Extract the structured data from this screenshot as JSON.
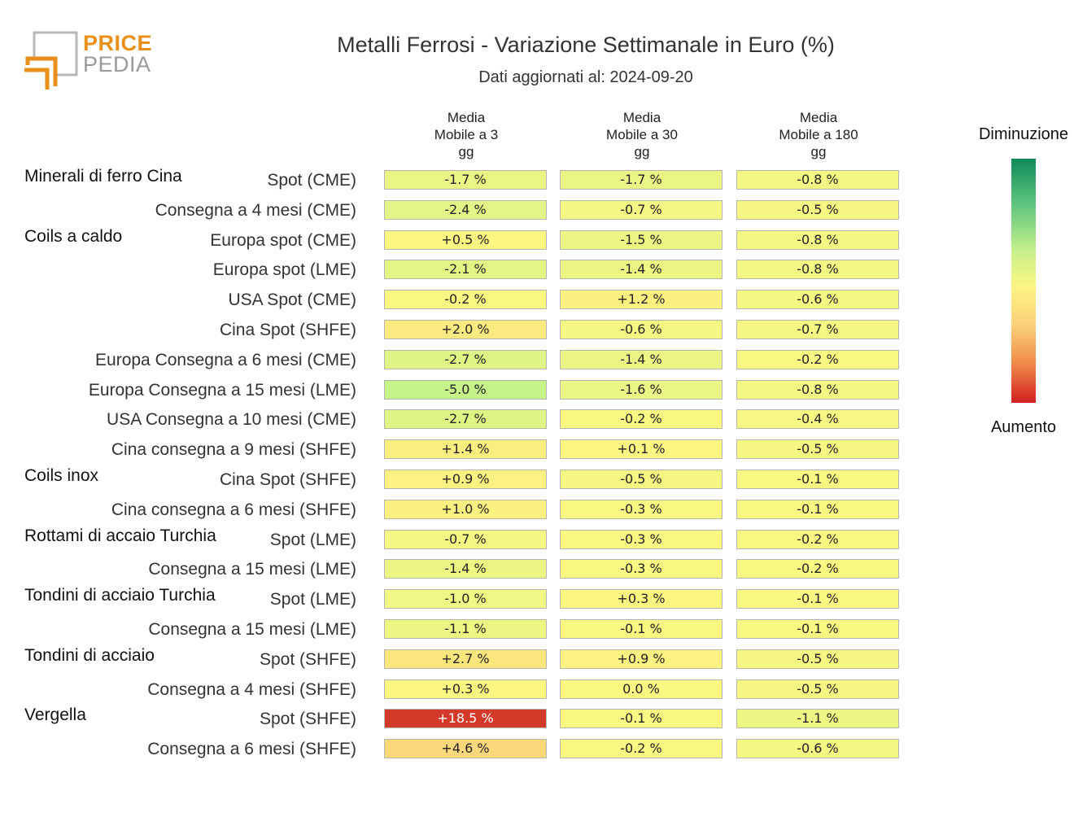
{
  "header": {
    "logo_line1": "PRICE",
    "logo_line2": "PEDIA",
    "title": "Metalli Ferrosi - Variazione Settimanale in Euro (%)",
    "subtitle": "Dati aggiornati al: 2024-09-20"
  },
  "legend": {
    "top_label": "Diminuzione",
    "bottom_label": "Aumento",
    "colors": [
      "#0f8a5a",
      "#5cc47e",
      "#c6f08a",
      "#fbf582",
      "#fbd27a",
      "#f08a4a",
      "#d11f1f"
    ]
  },
  "chart_data": {
    "type": "heatmap",
    "columns": [
      [
        "Media",
        "Mobile a 3",
        "gg"
      ],
      [
        "Media",
        "Mobile a 30",
        "gg"
      ],
      [
        "Media",
        "Mobile a 180",
        "gg"
      ]
    ],
    "rows": [
      {
        "group": "Minerali di ferro Cina",
        "label": "Spot (CME)",
        "values": [
          -1.7,
          -1.7,
          -0.8
        ],
        "text": [
          "-1.7 %",
          "-1.7 %",
          "-0.8 %"
        ]
      },
      {
        "group": "",
        "label": "Consegna a 4 mesi (CME)",
        "values": [
          -2.4,
          -0.7,
          -0.5
        ],
        "text": [
          "-2.4 %",
          "-0.7 %",
          "-0.5 %"
        ]
      },
      {
        "group": "Coils a caldo",
        "label": "Europa spot (CME)",
        "values": [
          0.5,
          -1.5,
          -0.8
        ],
        "text": [
          "+0.5 %",
          "-1.5 %",
          "-0.8 %"
        ]
      },
      {
        "group": "",
        "label": "Europa spot (LME)",
        "values": [
          -2.1,
          -1.4,
          -0.8
        ],
        "text": [
          "-2.1 %",
          "-1.4 %",
          "-0.8 %"
        ]
      },
      {
        "group": "",
        "label": "USA Spot (CME)",
        "values": [
          -0.2,
          1.2,
          -0.6
        ],
        "text": [
          "-0.2 %",
          "+1.2 %",
          "-0.6 %"
        ]
      },
      {
        "group": "",
        "label": "Cina Spot (SHFE)",
        "values": [
          2.0,
          -0.6,
          -0.7
        ],
        "text": [
          "+2.0 %",
          "-0.6 %",
          "-0.7 %"
        ]
      },
      {
        "group": "",
        "label": "Europa Consegna a 6 mesi (CME)",
        "values": [
          -2.7,
          -1.4,
          -0.2
        ],
        "text": [
          "-2.7 %",
          "-1.4 %",
          "-0.2 %"
        ]
      },
      {
        "group": "",
        "label": "Europa Consegna a 15 mesi (LME)",
        "values": [
          -5.0,
          -1.6,
          -0.8
        ],
        "text": [
          "-5.0 %",
          "-1.6 %",
          "-0.8 %"
        ]
      },
      {
        "group": "",
        "label": "USA Consegna a 10 mesi (CME)",
        "values": [
          -2.7,
          -0.2,
          -0.4
        ],
        "text": [
          "-2.7 %",
          "-0.2 %",
          "-0.4 %"
        ]
      },
      {
        "group": "",
        "label": "Cina consegna a 9 mesi (SHFE)",
        "values": [
          1.4,
          0.1,
          -0.5
        ],
        "text": [
          "+1.4 %",
          "+0.1 %",
          "-0.5 %"
        ]
      },
      {
        "group": "Coils inox",
        "label": "Cina Spot (SHFE)",
        "values": [
          0.9,
          -0.5,
          -0.1
        ],
        "text": [
          "+0.9 %",
          "-0.5 %",
          "-0.1 %"
        ]
      },
      {
        "group": "",
        "label": "Cina consegna a 6 mesi (SHFE)",
        "values": [
          1.0,
          -0.3,
          -0.1
        ],
        "text": [
          "+1.0 %",
          "-0.3 %",
          "-0.1 %"
        ]
      },
      {
        "group": "Rottami di accaio Turchia",
        "label": "Spot (LME)",
        "values": [
          -0.7,
          -0.3,
          -0.2
        ],
        "text": [
          "-0.7 %",
          "-0.3 %",
          "-0.2 %"
        ]
      },
      {
        "group": "",
        "label": "Consegna a 15 mesi (LME)",
        "values": [
          -1.4,
          -0.3,
          -0.2
        ],
        "text": [
          "-1.4 %",
          "-0.3 %",
          "-0.2 %"
        ]
      },
      {
        "group": "Tondini di acciaio Turchia",
        "label": "Spot (LME)",
        "values": [
          -1.0,
          0.3,
          -0.1
        ],
        "text": [
          "-1.0 %",
          "+0.3 %",
          "-0.1 %"
        ]
      },
      {
        "group": "",
        "label": "Consegna a 15 mesi (LME)",
        "values": [
          -1.1,
          -0.1,
          -0.1
        ],
        "text": [
          "-1.1 %",
          "-0.1 %",
          "-0.1 %"
        ]
      },
      {
        "group": "Tondini di acciaio",
        "label": "Spot (SHFE)",
        "values": [
          2.7,
          0.9,
          -0.5
        ],
        "text": [
          "+2.7 %",
          "+0.9 %",
          "-0.5 %"
        ]
      },
      {
        "group": "",
        "label": "Consegna a 4 mesi (SHFE)",
        "values": [
          0.3,
          0.0,
          -0.5
        ],
        "text": [
          "+0.3 %",
          "0.0 %",
          "-0.5 %"
        ]
      },
      {
        "group": "Vergella",
        "label": "Spot (SHFE)",
        "values": [
          18.5,
          -0.1,
          -1.1
        ],
        "text": [
          "+18.5 %",
          "-0.1 %",
          "-1.1 %"
        ]
      },
      {
        "group": "",
        "label": "Consegna a 6 mesi (SHFE)",
        "values": [
          4.6,
          -0.2,
          -0.6
        ],
        "text": [
          "+4.6 %",
          "-0.2 %",
          "-0.6 %"
        ]
      }
    ]
  }
}
